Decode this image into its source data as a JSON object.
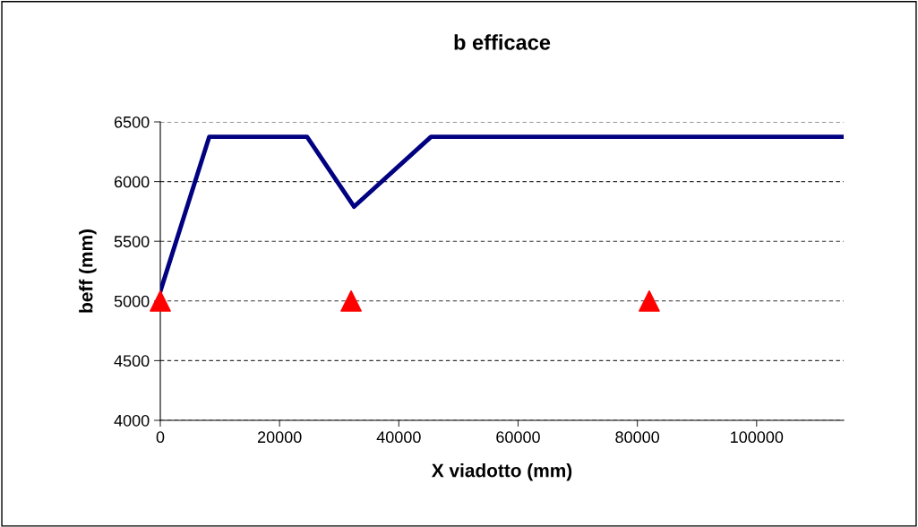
{
  "chart_data": {
    "type": "line",
    "title": "b efficace",
    "xlabel": "X viadotto (mm)",
    "ylabel": "beff (mm)",
    "xlim": [
      0,
      114600
    ],
    "xticks": [
      0,
      20000,
      40000,
      60000,
      80000,
      100000
    ],
    "ylim": [
      4000,
      6500
    ],
    "yticks": [
      4000,
      4500,
      5000,
      5500,
      6000,
      6500
    ],
    "grid": "y",
    "legend": false,
    "series": [
      {
        "color": "#000080",
        "marker": "none",
        "line_style": "solid",
        "x": [
          0,
          8200,
          24600,
          32500,
          45400,
          114600
        ],
        "values": [
          5080,
          6375,
          6375,
          5790,
          6375,
          6375
        ]
      },
      {
        "type": "scatter",
        "color": "#ff0000",
        "marker": "triangle",
        "x": [
          0,
          32000,
          82000
        ],
        "values": [
          5000,
          5000,
          5000
        ]
      }
    ]
  }
}
